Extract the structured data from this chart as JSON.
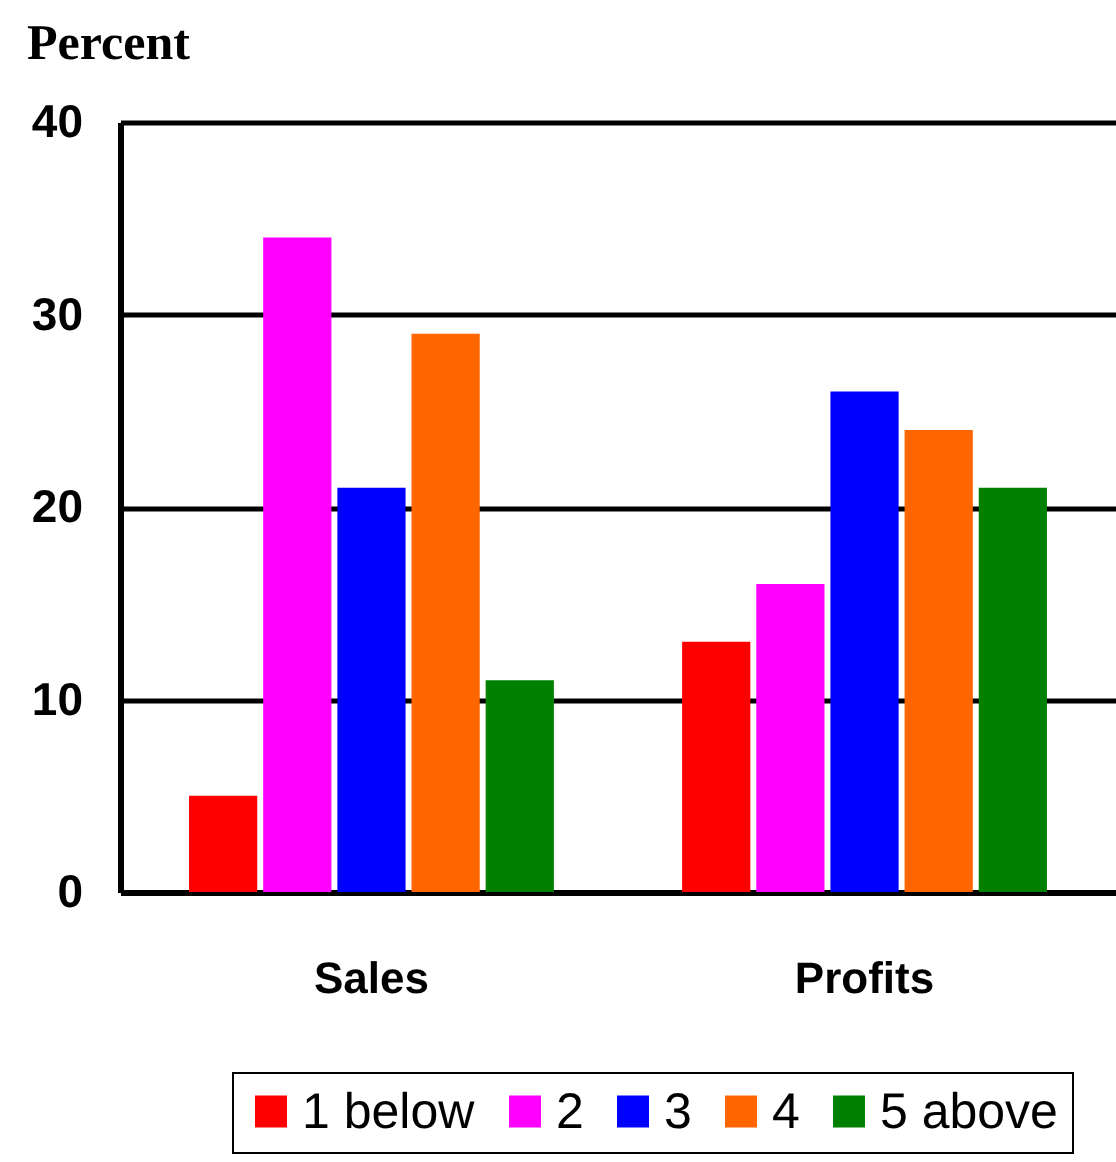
{
  "chart_data": {
    "type": "bar",
    "ylabel": "Percent",
    "categories": [
      "Sales",
      "Profits"
    ],
    "series": [
      {
        "name": "1 below",
        "color": "#ff0000",
        "values": [
          5,
          13
        ]
      },
      {
        "name": "2",
        "color": "#ff00ff",
        "values": [
          34,
          16
        ]
      },
      {
        "name": "3",
        "color": "#0000ff",
        "values": [
          21,
          26
        ]
      },
      {
        "name": "4",
        "color": "#ff6600",
        "values": [
          29,
          24
        ]
      },
      {
        "name": "5 above",
        "color": "#008000",
        "values": [
          11,
          21
        ]
      }
    ],
    "ylim": [
      0,
      40
    ],
    "yticks": [
      0,
      10,
      20,
      30,
      40
    ],
    "grid": "y",
    "legend": "bottom"
  }
}
